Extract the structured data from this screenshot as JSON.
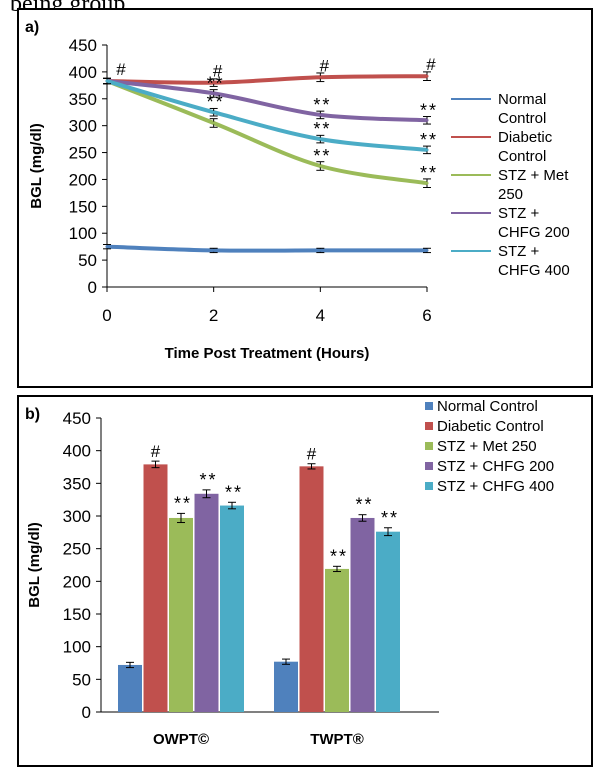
{
  "header_text": "being group.",
  "colors": {
    "normal": "#4f81bd",
    "diabetic": "#c0504d",
    "met": "#9bbb59",
    "chfg200": "#8064a2",
    "chfg400": "#4bacc6"
  },
  "chart_data": [
    {
      "type": "line",
      "panel_label": "a)",
      "xlabel": "Time Post Treatment (Hours)",
      "ylabel": "BGL (mg/dl)",
      "x": [
        0,
        2,
        4,
        6
      ],
      "xlim": [
        0,
        6
      ],
      "ylim": [
        0,
        450
      ],
      "x_ticks": [
        0,
        2,
        4,
        6
      ],
      "y_ticks": [
        0,
        50,
        100,
        150,
        200,
        250,
        300,
        350,
        400,
        450
      ],
      "grid": false,
      "legend_position": "right",
      "series": [
        {
          "name": "Normal Control",
          "legend_lines": [
            "Normal",
            "Control"
          ],
          "color_key": "normal",
          "values": [
            75,
            68,
            68,
            68
          ],
          "errors": [
            4,
            4,
            4,
            4
          ]
        },
        {
          "name": "Diabetic Control",
          "legend_lines": [
            "Diabetic",
            "Control"
          ],
          "color_key": "diabetic",
          "values": [
            383,
            380,
            390,
            392
          ],
          "errors": [
            5,
            7,
            8,
            8
          ]
        },
        {
          "name": "STZ + Met 250",
          "legend_lines": [
            "STZ + Met",
            "250"
          ],
          "color_key": "met",
          "values": [
            383,
            305,
            225,
            193
          ],
          "errors": [
            5,
            8,
            8,
            8
          ]
        },
        {
          "name": "STZ + CHFG 200",
          "legend_lines": [
            "STZ +",
            "CHFG 200"
          ],
          "color_key": "chfg200",
          "values": [
            383,
            360,
            320,
            310
          ],
          "errors": [
            5,
            7,
            7,
            7
          ]
        },
        {
          "name": "STZ + CHFG 400",
          "legend_lines": [
            "STZ +",
            "CHFG 400"
          ],
          "color_key": "chfg400",
          "values": [
            383,
            325,
            275,
            255
          ],
          "errors": [
            5,
            7,
            7,
            7
          ]
        }
      ],
      "annotations": [
        {
          "text": "#",
          "x": 0,
          "y": 383
        },
        {
          "text": "#",
          "x": 2,
          "y": 380
        },
        {
          "text": "#",
          "x": 4,
          "y": 390
        },
        {
          "text": "#",
          "x": 6,
          "y": 392
        },
        {
          "text": "**",
          "x": 2,
          "y": 360
        },
        {
          "text": "**",
          "x": 2,
          "y": 325
        },
        {
          "text": "**",
          "x": 4,
          "y": 320
        },
        {
          "text": "**",
          "x": 4,
          "y": 275
        },
        {
          "text": "**",
          "x": 4,
          "y": 225
        },
        {
          "text": "**",
          "x": 6,
          "y": 310
        },
        {
          "text": "**",
          "x": 6,
          "y": 255
        },
        {
          "text": "**",
          "x": 6,
          "y": 193
        }
      ]
    },
    {
      "type": "bar",
      "panel_label": "b)",
      "ylabel": "BGL (mg/dl)",
      "categories": [
        "OWPT©",
        "TWPT®"
      ],
      "ylim": [
        0,
        450
      ],
      "y_ticks": [
        0,
        50,
        100,
        150,
        200,
        250,
        300,
        350,
        400,
        450
      ],
      "grid": false,
      "legend_position": "top-right",
      "series": [
        {
          "name": "Normal Control",
          "color_key": "normal",
          "values": [
            72,
            77
          ],
          "errors": [
            4,
            4
          ],
          "marks": [
            "",
            ""
          ]
        },
        {
          "name": "Diabetic Control",
          "color_key": "diabetic",
          "values": [
            379,
            376
          ],
          "errors": [
            5,
            4
          ],
          "marks": [
            "#",
            "#"
          ]
        },
        {
          "name": "STZ + Met 250",
          "color_key": "met",
          "values": [
            297,
            219
          ],
          "errors": [
            7,
            4
          ],
          "marks": [
            "**",
            "**"
          ]
        },
        {
          "name": "STZ + CHFG 200",
          "color_key": "chfg200",
          "values": [
            334,
            297
          ],
          "errors": [
            6,
            5
          ],
          "marks": [
            "**",
            "**"
          ]
        },
        {
          "name": "STZ + CHFG 400",
          "color_key": "chfg400",
          "values": [
            316,
            276
          ],
          "errors": [
            5,
            6
          ],
          "marks": [
            "**",
            "**"
          ]
        }
      ]
    }
  ]
}
